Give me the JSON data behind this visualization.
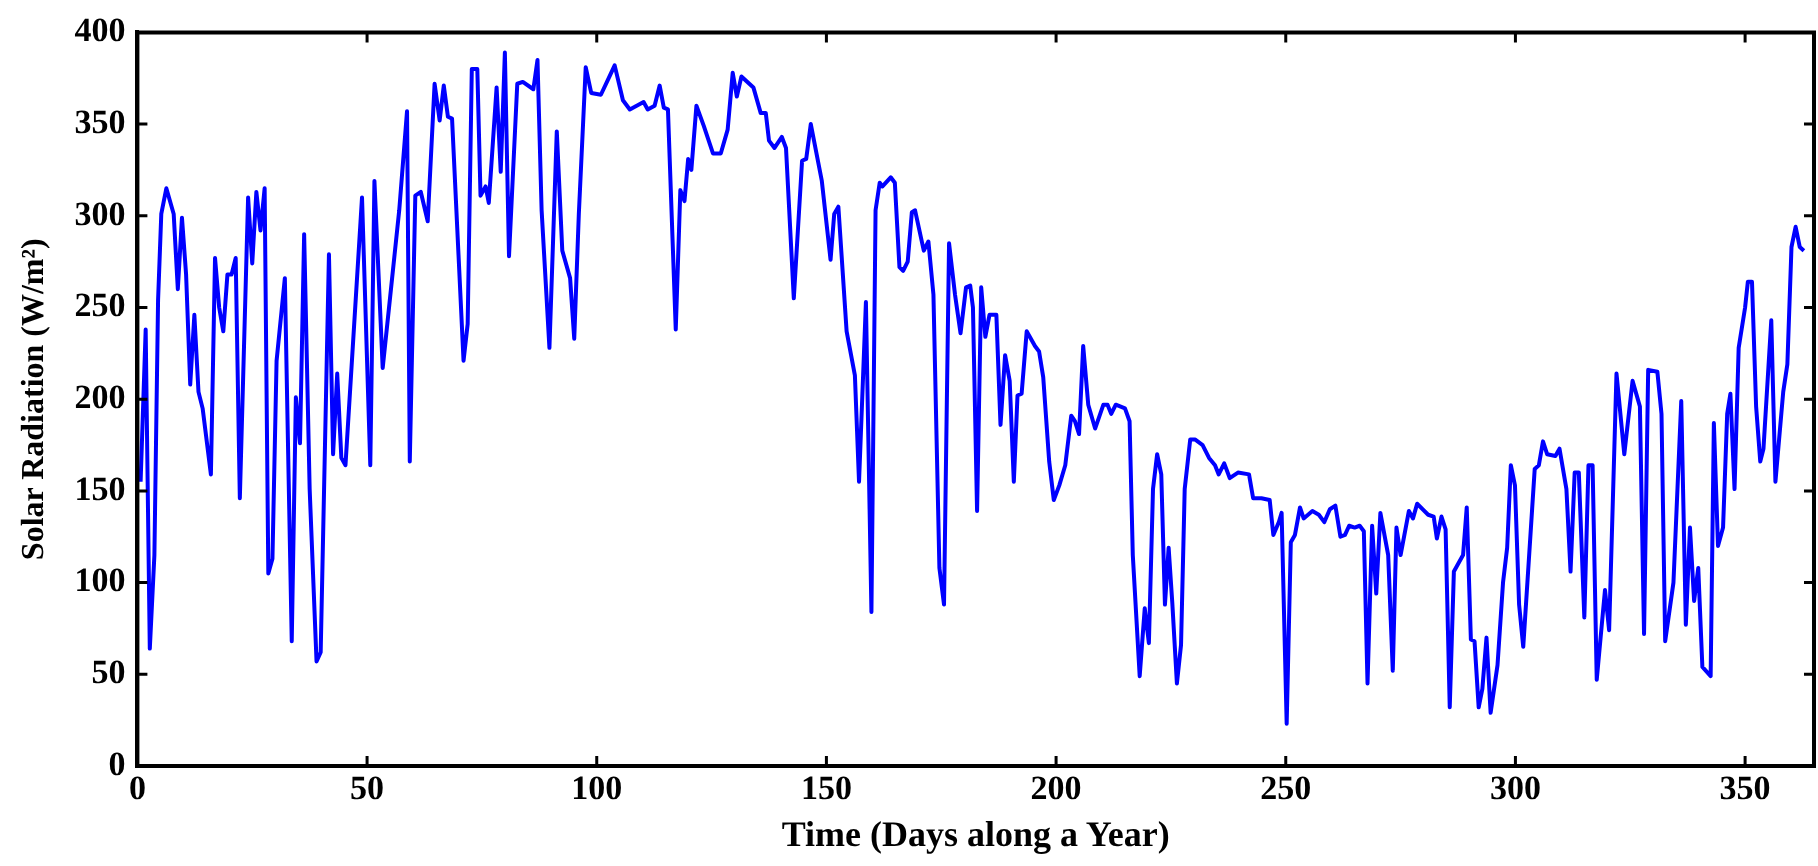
{
  "chart_data": {
    "type": "line",
    "xlabel": "Time (Days along a Year)",
    "ylabel": "Solar Radiation (W/m²)",
    "x": [
      0.7,
      1.8,
      2.7,
      3.7,
      4.5,
      5.2,
      6.3,
      7.9,
      8.8,
      9.7,
      10.6,
      11.5,
      12.4,
      13.3,
      14.2,
      16,
      16.9,
      17.8,
      18.7,
      19.6,
      20.5,
      21.4,
      22.3,
      24.1,
      25,
      25.9,
      26.8,
      27.7,
      28.5,
      29.4,
      30.3,
      32.1,
      33.6,
      34.5,
      35.4,
      36.3,
      37.5,
      39,
      39.9,
      41.7,
      42.6,
      43.5,
      44.4,
      45.3,
      48.9,
      50.7,
      51.6,
      53.4,
      57,
      58.7,
      59.3,
      60.5,
      61.7,
      63.2,
      64.7,
      65.8,
      66.7,
      67.6,
      68.5,
      71,
      71.9,
      72.8,
      74,
      74.7,
      75.8,
      76.5,
      78.2,
      79.1,
      80,
      80.9,
      82.7,
      83.9,
      86.2,
      87.1,
      88,
      89.7,
      91.3,
      92.5,
      94.2,
      95.1,
      96.1,
      97.6,
      98.8,
      100.9,
      102.4,
      103.9,
      105.7,
      107.2,
      110.2,
      111.1,
      112.6,
      113.7,
      114.6,
      115.5,
      117.2,
      118.2,
      119.1,
      119.9,
      120.6,
      121.7,
      123.3,
      125.3,
      127,
      128.5,
      129.6,
      130.5,
      131.5,
      134.1,
      135.7,
      136.8,
      137.5,
      138.7,
      140.3,
      141.2,
      142.9,
      144.7,
      145.6,
      146.6,
      149,
      150.9,
      151.7,
      152.6,
      154.4,
      156.2,
      157.1,
      158.6,
      159.8,
      160.7,
      161.6,
      162.2,
      164,
      164.9,
      165.9,
      166.7,
      167.7,
      168.6,
      169.3,
      171.2,
      172.2,
      173.3,
      174.6,
      175.6,
      176.7,
      178,
      179.2,
      180.4,
      181.3,
      181.9,
      182.8,
      183.7,
      184.6,
      185.5,
      187,
      187.9,
      188.9,
      189.9,
      190.8,
      191.6,
      192.5,
      193.6,
      195.4,
      196.3,
      197.2,
      198.5,
      199.5,
      200.7,
      202,
      203.3,
      204.1,
      205,
      205.9,
      207,
      208.5,
      210.3,
      211.2,
      212,
      213,
      215,
      216,
      216.7,
      218.2,
      219.3,
      220.2,
      221.1,
      222,
      222.9,
      223.7,
      224.5,
      225.3,
      226.3,
      227.2,
      228,
      229.2,
      230.3,
      231.9,
      233.3,
      234.6,
      235.4,
      236.6,
      237.8,
      239.6,
      242,
      242.9,
      244.7,
      246.5,
      247.3,
      248.5,
      249.1,
      250.2,
      251.1,
      252,
      253.1,
      253.9,
      255.8,
      257.2,
      258.4,
      259.6,
      260.8,
      261.9,
      262.9,
      263.8,
      265,
      266.1,
      267,
      267.8,
      268.8,
      269.7,
      270.6,
      272.3,
      273.3,
      274.1,
      275,
      276.8,
      277.7,
      278.6,
      281,
      282.2,
      282.9,
      283.9,
      284.8,
      285.7,
      286.6,
      288.6,
      289.4,
      290.3,
      291.1,
      292,
      292.8,
      293.7,
      294.6,
      296.1,
      297.3,
      298.2,
      299,
      299.9,
      300.8,
      301.7,
      304.2,
      305.1,
      306,
      306.9,
      308.7,
      309.6,
      311.1,
      312,
      312.9,
      313.8,
      315,
      315.9,
      316.8,
      317.7,
      319.5,
      320.4,
      322,
      323.7,
      325.5,
      327.1,
      328,
      328.9,
      330.9,
      331.8,
      332.6,
      334.4,
      336.1,
      337.1,
      338,
      338.9,
      339.8,
      340.7,
      342.5,
      343.2,
      344.1,
      345.2,
      346.1,
      346.8,
      347.7,
      348.6,
      350,
      350.6,
      351.5,
      352.4,
      353.3,
      354,
      355.7,
      356.6,
      358.3,
      359.2,
      360.1,
      361,
      361.9,
      362.8
    ],
    "series": [
      {
        "color": "#0000ff",
        "values": [
          155,
          238,
          64,
          115,
          254,
          301,
          315,
          301,
          260,
          299,
          268,
          208,
          246,
          204,
          195,
          159,
          277,
          250,
          237,
          268,
          268,
          277,
          146,
          310,
          274,
          313,
          292,
          315,
          105,
          113,
          221,
          266,
          68,
          201,
          176,
          290,
          151,
          57,
          62,
          279,
          170,
          214,
          168,
          164,
          310,
          164,
          319,
          217,
          303,
          357,
          166,
          311,
          313,
          297,
          372,
          352,
          371,
          354,
          353,
          221,
          241,
          380,
          380,
          311,
          316,
          307,
          370,
          324,
          389,
          278,
          372,
          373,
          369,
          385,
          303,
          228,
          346,
          281,
          266,
          233,
          301,
          381,
          367,
          366,
          374,
          382,
          363,
          358,
          362,
          358,
          360,
          371,
          359,
          358,
          238,
          314,
          308,
          331,
          325,
          360,
          349,
          334,
          334,
          347,
          378,
          365,
          376,
          370,
          356,
          356,
          341,
          337,
          343,
          337,
          255,
          330,
          331,
          350,
          319,
          276,
          301,
          305,
          237,
          213,
          155,
          253,
          84,
          303,
          318,
          316,
          321,
          318,
          272,
          270,
          275,
          302,
          303,
          281,
          286,
          257,
          108,
          88,
          285,
          257,
          236,
          261,
          262,
          250,
          139,
          261,
          234,
          246,
          246,
          186,
          224,
          210,
          155,
          202,
          203,
          237,
          229,
          226,
          212,
          166,
          145,
          153,
          164,
          191,
          188,
          181,
          229,
          197,
          184,
          197,
          197,
          192,
          197,
          195,
          188,
          115,
          49,
          86,
          67,
          151,
          170,
          159,
          88,
          119,
          89,
          45,
          66,
          151,
          178,
          178,
          175,
          168,
          164,
          159,
          165,
          157,
          160,
          159,
          146,
          146,
          145,
          126,
          133,
          138,
          23,
          122,
          126,
          141,
          135,
          139,
          137,
          133,
          140,
          142,
          125,
          126,
          131,
          130,
          131,
          128,
          45,
          131,
          94,
          138,
          115,
          52,
          130,
          115,
          139,
          135,
          143,
          137,
          136,
          124,
          136,
          129,
          32,
          106,
          115,
          141,
          69,
          68,
          32,
          42,
          70,
          29,
          55,
          100,
          119,
          164,
          153,
          88,
          65,
          162,
          164,
          177,
          170,
          169,
          173,
          151,
          106,
          160,
          160,
          81,
          164,
          164,
          47,
          96,
          74,
          214,
          170,
          210,
          196,
          72,
          216,
          215,
          192,
          68,
          100,
          199,
          77,
          130,
          90,
          108,
          54,
          49,
          187,
          120,
          130,
          192,
          203,
          151,
          228,
          250,
          264,
          264,
          196,
          166,
          173,
          243,
          155,
          204,
          219,
          283,
          294,
          283,
          281
        ]
      }
    ],
    "xlim": [
      0,
      365
    ],
    "ylim": [
      0,
      400
    ],
    "xticks": [
      0,
      50,
      100,
      150,
      200,
      250,
      300,
      350
    ],
    "yticks": [
      0,
      50,
      100,
      150,
      200,
      250,
      300,
      350,
      400
    ],
    "grid": false,
    "legend": false,
    "marker": "none",
    "line_style": "solid"
  }
}
